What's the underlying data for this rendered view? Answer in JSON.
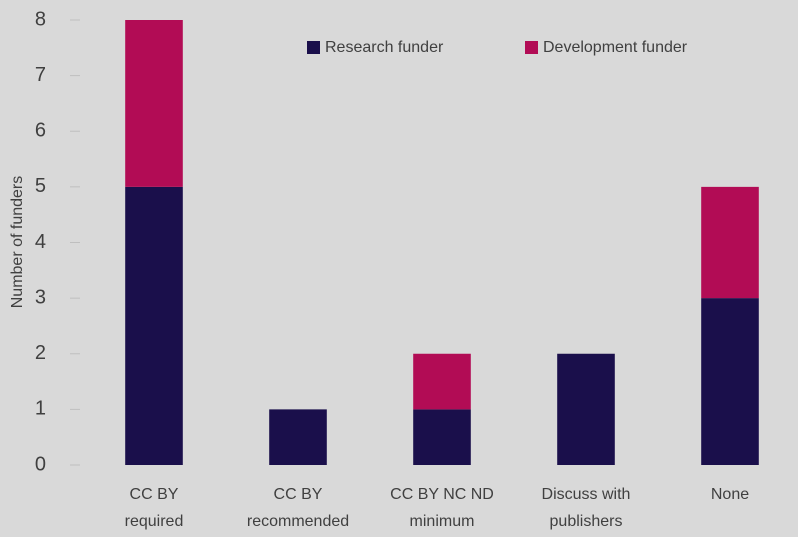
{
  "chart_data": {
    "type": "stacked_bar",
    "y_label": "Number of funders",
    "categories": [
      [
        "CC BY",
        "required"
      ],
      [
        "CC BY",
        "recommended"
      ],
      [
        "CC BY NC ND",
        "minimum"
      ],
      [
        "Discuss with",
        "publishers"
      ],
      [
        "None"
      ]
    ],
    "series": [
      {
        "name": "Research funder",
        "color": "#1a0f4b",
        "values": [
          5,
          1,
          1,
          2,
          3
        ]
      },
      {
        "name": "Development funder",
        "color": "#b20c55",
        "values": [
          3,
          0,
          1,
          0,
          2
        ]
      }
    ],
    "ylim": [
      0,
      8
    ],
    "yticks": [
      0,
      1,
      2,
      3,
      4,
      5,
      6,
      7,
      8
    ],
    "legend": "top-right"
  }
}
